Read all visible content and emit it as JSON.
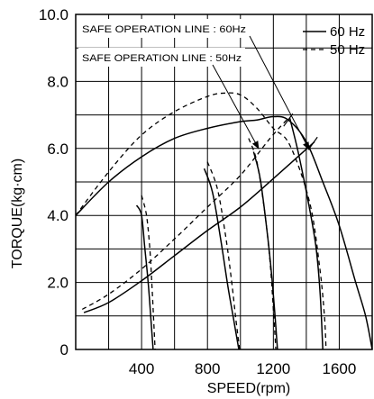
{
  "chart_data": {
    "type": "line",
    "title": "",
    "xlabel": "SPEED(rpm)",
    "ylabel": "TORQUE(kg·cm)",
    "xlim": [
      0,
      1800
    ],
    "ylim": [
      0,
      10
    ],
    "x_ticks": [
      400,
      800,
      1200,
      1600
    ],
    "x_tick_labels": [
      "400",
      "800",
      "1200",
      "1600"
    ],
    "y_ticks": [
      0,
      2,
      4,
      6,
      8,
      10
    ],
    "y_tick_labels": [
      "0",
      "2.0",
      "4.0",
      "6.0",
      "8.0",
      "10.0"
    ],
    "grid": true,
    "legend": {
      "position": "top-right",
      "entries": [
        {
          "label": "60 Hz",
          "style": "solid"
        },
        {
          "label": "50 Hz",
          "style": "dashed"
        }
      ]
    },
    "annotations": [
      {
        "text": "SAFE OPERATION LINE : 60Hz",
        "target": [
          1440,
          6.0
        ]
      },
      {
        "text": "SAFE OPERATION LINE : 50Hz",
        "target": [
          1080,
          6.25
        ]
      }
    ],
    "series": [
      {
        "name": "60 Hz",
        "style": "solid",
        "role": "motor-curve",
        "points": [
          [
            0,
            4.0
          ],
          [
            200,
            5.0
          ],
          [
            400,
            5.75
          ],
          [
            600,
            6.3
          ],
          [
            800,
            6.6
          ],
          [
            1000,
            6.8
          ],
          [
            1100,
            6.85
          ],
          [
            1200,
            6.95
          ],
          [
            1290,
            6.85
          ],
          [
            1400,
            6.2
          ],
          [
            1500,
            5.0
          ],
          [
            1600,
            3.7
          ],
          [
            1700,
            2.0
          ],
          [
            1760,
            1.0
          ],
          [
            1800,
            0
          ]
        ]
      },
      {
        "name": "60 Hz",
        "style": "solid",
        "role": "safe-operation-line",
        "points": [
          [
            50,
            1.1
          ],
          [
            200,
            1.4
          ],
          [
            400,
            2.05
          ],
          [
            600,
            2.8
          ],
          [
            800,
            3.55
          ],
          [
            1000,
            4.25
          ],
          [
            1200,
            5.1
          ],
          [
            1450,
            6.2
          ]
        ]
      },
      {
        "name": "60 Hz",
        "style": "solid",
        "role": "load-curve",
        "points": [
          [
            370,
            4.3
          ],
          [
            400,
            4.0
          ],
          [
            420,
            3.0
          ],
          [
            440,
            2.0
          ],
          [
            455,
            1.0
          ],
          [
            470,
            0
          ]
        ]
      },
      {
        "name": "60 Hz",
        "style": "solid",
        "role": "load-curve",
        "points": [
          [
            780,
            5.4
          ],
          [
            830,
            4.7
          ],
          [
            880,
            3.3
          ],
          [
            920,
            2.0
          ],
          [
            955,
            1.0
          ],
          [
            990,
            0
          ]
        ]
      },
      {
        "name": "60 Hz",
        "style": "solid",
        "role": "load-curve",
        "points": [
          [
            1080,
            5.9
          ],
          [
            1120,
            5.1
          ],
          [
            1160,
            3.6
          ],
          [
            1190,
            2.2
          ],
          [
            1210,
            1.0
          ],
          [
            1225,
            0
          ]
        ]
      },
      {
        "name": "60 Hz",
        "style": "solid",
        "role": "load-curve",
        "points": [
          [
            1300,
            6.9
          ],
          [
            1350,
            5.9
          ],
          [
            1420,
            4.2
          ],
          [
            1460,
            3.0
          ],
          [
            1485,
            1.6
          ],
          [
            1500,
            0
          ]
        ]
      },
      {
        "name": "50 Hz",
        "style": "dashed",
        "role": "motor-curve",
        "points": [
          [
            0,
            4.0
          ],
          [
            200,
            5.3
          ],
          [
            400,
            6.4
          ],
          [
            600,
            7.1
          ],
          [
            800,
            7.55
          ],
          [
            900,
            7.65
          ],
          [
            1000,
            7.6
          ],
          [
            1100,
            7.2
          ],
          [
            1200,
            6.6
          ],
          [
            1300,
            6.1
          ],
          [
            1420,
            4.4
          ],
          [
            1480,
            2.5
          ],
          [
            1510,
            1.0
          ],
          [
            1520,
            0
          ]
        ]
      },
      {
        "name": "50 Hz",
        "style": "dashed",
        "role": "safe-operation-line",
        "points": [
          [
            40,
            1.2
          ],
          [
            200,
            1.65
          ],
          [
            400,
            2.4
          ],
          [
            600,
            3.3
          ],
          [
            800,
            4.25
          ],
          [
            1000,
            5.2
          ],
          [
            1180,
            6.3
          ],
          [
            1290,
            6.9
          ]
        ]
      },
      {
        "name": "50 Hz",
        "style": "dashed",
        "role": "load-curve",
        "points": [
          [
            400,
            4.6
          ],
          [
            430,
            4.0
          ],
          [
            450,
            3.0
          ],
          [
            462,
            2.0
          ],
          [
            472,
            1.0
          ],
          [
            482,
            0
          ]
        ]
      },
      {
        "name": "50 Hz",
        "style": "dashed",
        "role": "load-curve",
        "points": [
          [
            800,
            5.6
          ],
          [
            860,
            4.8
          ],
          [
            910,
            3.4
          ],
          [
            945,
            2.1
          ],
          [
            970,
            1.0
          ],
          [
            995,
            0
          ]
        ]
      },
      {
        "name": "50 Hz",
        "style": "dashed",
        "role": "load-curve",
        "points": [
          [
            1050,
            6.3
          ],
          [
            1100,
            5.6
          ],
          [
            1150,
            4.0
          ],
          [
            1180,
            2.6
          ],
          [
            1200,
            1.2
          ],
          [
            1215,
            0
          ]
        ]
      }
    ]
  }
}
